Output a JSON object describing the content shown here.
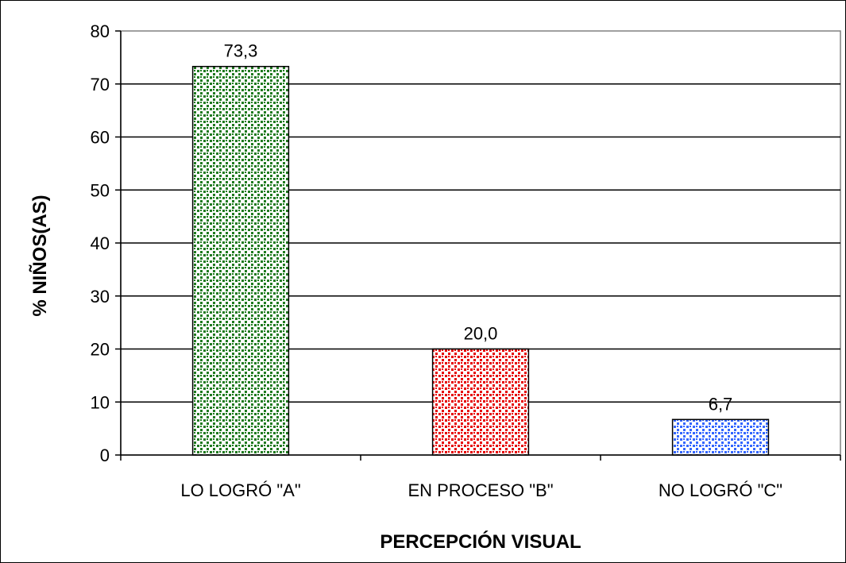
{
  "chart_data": {
    "type": "bar",
    "categories": [
      "LO LOGRÓ \"A\"",
      "EN PROCESO \"B\"",
      "NO LOGRÓ \"C\""
    ],
    "values": [
      73.3,
      20.0,
      6.7
    ],
    "data_labels": [
      "73,3",
      "20,0",
      "6,7"
    ],
    "xlabel": "PERCEPCIÓN VISUAL",
    "ylabel": "% NIÑOS(AS)",
    "ylim": [
      0,
      80
    ],
    "yticks": [
      0,
      10,
      20,
      30,
      40,
      50,
      60,
      70,
      80
    ],
    "grid": true,
    "legend": "none",
    "bar_colors": [
      "#1f7a1f",
      "#e60000",
      "#3366ff"
    ],
    "bar_pattern": "dotted"
  }
}
